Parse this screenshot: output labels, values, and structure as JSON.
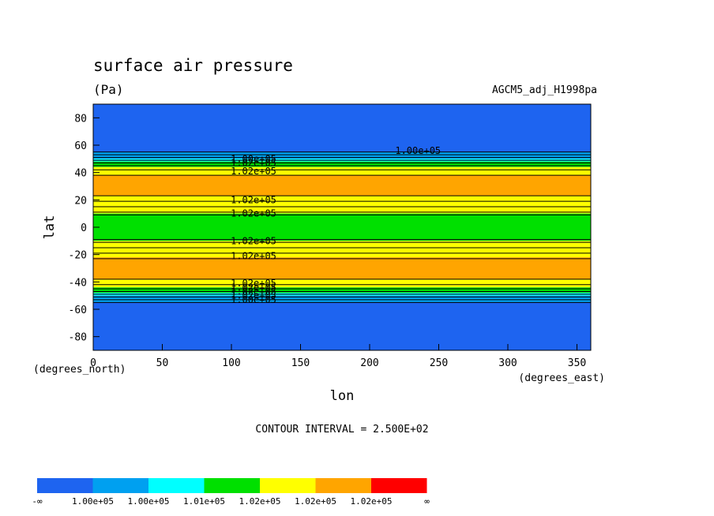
{
  "chart_data": {
    "type": "heatmap",
    "title": "surface air pressure",
    "units": "(Pa)",
    "dataset": "AGCM5_adj_H1998pa",
    "xlabel": "lon",
    "ylabel": "lat",
    "x_units": "(degrees_east)",
    "y_units": "(degrees_north)",
    "xlim": [
      0,
      360
    ],
    "ylim": [
      -90,
      90
    ],
    "x_ticks": [
      0,
      50,
      100,
      150,
      200,
      250,
      300,
      350
    ],
    "y_ticks": [
      80,
      60,
      40,
      20,
      0,
      -20,
      -40,
      -60,
      -80
    ],
    "contour_interval_text": "CONTOUR INTERVAL = 2.500E+02",
    "colors": {
      "blue": "#1e64f0",
      "mid_blue": "#00a0f0",
      "cyan": "#00ffff",
      "green": "#00e000",
      "yellow": "#ffff00",
      "orange": "#ffa500",
      "red": "#ff0000",
      "lines": "#000000"
    },
    "bands": [
      {
        "lat_from": 90,
        "lat_to": 55,
        "color": "blue"
      },
      {
        "lat_from": 55,
        "lat_to": 50,
        "color": "mid_blue"
      },
      {
        "lat_from": 50,
        "lat_to": 48,
        "color": "cyan"
      },
      {
        "lat_from": 48,
        "lat_to": 44,
        "color": "green"
      },
      {
        "lat_from": 44,
        "lat_to": 38,
        "color": "yellow"
      },
      {
        "lat_from": 38,
        "lat_to": 23,
        "color": "orange"
      },
      {
        "lat_from": 23,
        "lat_to": 10,
        "color": "yellow"
      },
      {
        "lat_from": 10,
        "lat_to": -10,
        "color": "green"
      },
      {
        "lat_from": -10,
        "lat_to": -22,
        "color": "yellow"
      },
      {
        "lat_from": -22,
        "lat_to": -38,
        "color": "orange"
      },
      {
        "lat_from": -38,
        "lat_to": -44,
        "color": "yellow"
      },
      {
        "lat_from": -44,
        "lat_to": -48,
        "color": "green"
      },
      {
        "lat_from": -48,
        "lat_to": -50,
        "color": "cyan"
      },
      {
        "lat_from": -50,
        "lat_to": -55,
        "color": "mid_blue"
      },
      {
        "lat_from": -55,
        "lat_to": -90,
        "color": "blue"
      }
    ],
    "contour_lines_lat": [
      55,
      53,
      51,
      49,
      47,
      45,
      42,
      38,
      23,
      19,
      15,
      11,
      9,
      -9,
      -11,
      -15,
      -19,
      -23,
      -38,
      -42,
      -45,
      -47,
      -49,
      -51,
      -53,
      -55
    ],
    "contour_labels": [
      {
        "text": "1.00e+05",
        "lon": 116,
        "lat": 50
      },
      {
        "text": "1.02e+05",
        "lon": 116,
        "lat": 47
      },
      {
        "text": "1.02e+05",
        "lon": 116,
        "lat": 41
      },
      {
        "text": "1.00e+05",
        "lon": 235,
        "lat": 56
      },
      {
        "text": "1.02e+05",
        "lon": 116,
        "lat": 20
      },
      {
        "text": "1.02e+05",
        "lon": 116,
        "lat": 10
      },
      {
        "text": "1.02e+05",
        "lon": 116,
        "lat": -10
      },
      {
        "text": "1.02e+05",
        "lon": 116,
        "lat": -21
      },
      {
        "text": "1.02e+05",
        "lon": 116,
        "lat": -41
      },
      {
        "text": "1.02e+05",
        "lon": 116,
        "lat": -44
      },
      {
        "text": "1.02e+05",
        "lon": 116,
        "lat": -47
      },
      {
        "text": "1.02e+05",
        "lon": 116,
        "lat": -50
      },
      {
        "text": "1.00e+05",
        "lon": 116,
        "lat": -53
      }
    ],
    "colorbar": {
      "colors": [
        "blue",
        "mid_blue",
        "cyan",
        "green",
        "yellow",
        "orange",
        "red"
      ],
      "labels": [
        "-∞",
        "1.00e+05",
        "1.00e+05",
        "1.01e+05",
        "1.02e+05",
        "1.02e+05",
        "1.02e+05",
        "∞"
      ]
    }
  }
}
